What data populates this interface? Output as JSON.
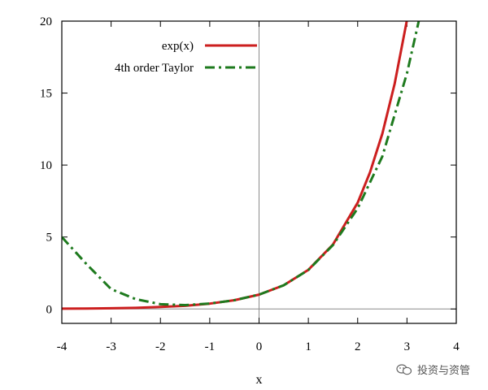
{
  "chart_data": {
    "type": "line",
    "title": "",
    "xlabel": "x",
    "ylabel": "",
    "xlim": [
      -4,
      4
    ],
    "ylim": [
      -1,
      20
    ],
    "x_ticks": [
      -4,
      -3,
      -2,
      -1,
      0,
      1,
      2,
      3,
      4
    ],
    "y_ticks": [
      0,
      5,
      10,
      15,
      20
    ],
    "x_tick_labels": [
      "-4",
      "-3",
      "-2",
      "-1",
      "0",
      "1",
      "2",
      "3",
      "4"
    ],
    "y_tick_labels": [
      "0",
      "5",
      "10",
      "15",
      "20"
    ],
    "grid": false,
    "legend_position": "top-left",
    "series": [
      {
        "name": "exp(x)",
        "color": "#cc1f1f",
        "line_style": "solid",
        "x": [
          -4,
          -3.5,
          -3,
          -2.5,
          -2,
          -1.5,
          -1,
          -0.5,
          0,
          0.5,
          1,
          1.5,
          2,
          2.25,
          2.5,
          2.75,
          3
        ],
        "y": [
          0.02,
          0.03,
          0.05,
          0.08,
          0.14,
          0.22,
          0.37,
          0.61,
          1.0,
          1.65,
          2.72,
          4.48,
          7.39,
          9.49,
          12.18,
          15.64,
          20.09
        ]
      },
      {
        "name": "4th order Taylor",
        "color": "#1e7a1e",
        "line_style": "dash-dot",
        "x": [
          -4,
          -3.5,
          -3,
          -2.5,
          -2,
          -1.5,
          -1,
          -0.5,
          0,
          0.5,
          1,
          1.5,
          2,
          2.5,
          3,
          3.25
        ],
        "y": [
          5.0,
          3.12,
          1.38,
          0.68,
          0.33,
          0.27,
          0.38,
          0.61,
          1.0,
          1.65,
          2.71,
          4.44,
          7.0,
          10.6,
          16.38,
          20.16
        ]
      }
    ],
    "reference_lines": [
      {
        "orientation": "vertical",
        "value": 0
      },
      {
        "orientation": "horizontal",
        "value": 0
      }
    ]
  },
  "watermark": {
    "text": "投资与资管",
    "icon": "wechat-icon"
  }
}
